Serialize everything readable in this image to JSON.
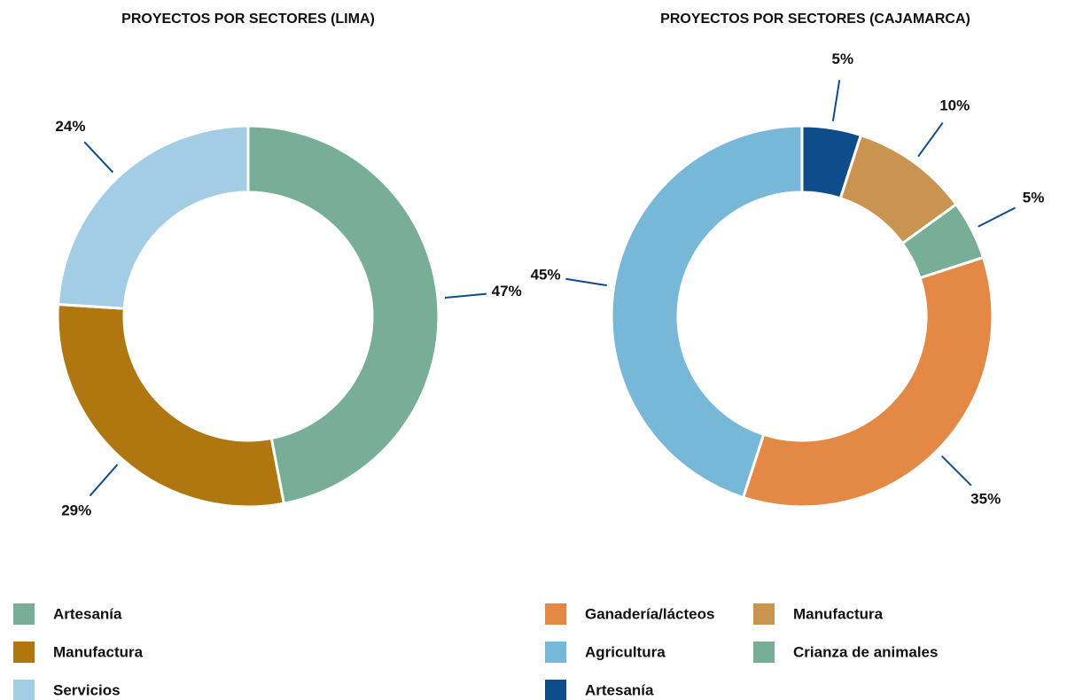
{
  "chart_data": [
    {
      "type": "pie",
      "title": "PROYECTOS POR SECTORES (LIMA)",
      "categories": [
        "Artesanía",
        "Manufactura",
        "Servicios"
      ],
      "values": [
        47,
        29,
        24
      ],
      "value_labels": [
        "47%",
        "29%",
        "24%"
      ],
      "colors": [
        "#78ae98",
        "#b07610",
        "#a3cde4"
      ]
    },
    {
      "type": "pie",
      "title": "PROYECTOS POR SECTORES (CAJAMARCA)",
      "categories": [
        "Artesanía",
        "Manufactura",
        "Crianza de animales",
        "Ganadería/lácteos",
        "Agricultura"
      ],
      "values": [
        5,
        10,
        5,
        35,
        45
      ],
      "value_labels": [
        "5%",
        "10%",
        "5%",
        "35%",
        "45%"
      ],
      "colors": [
        "#0f4c8c",
        "#c8944f",
        "#78ae98",
        "#e38845",
        "#77b8d8"
      ]
    }
  ]
}
